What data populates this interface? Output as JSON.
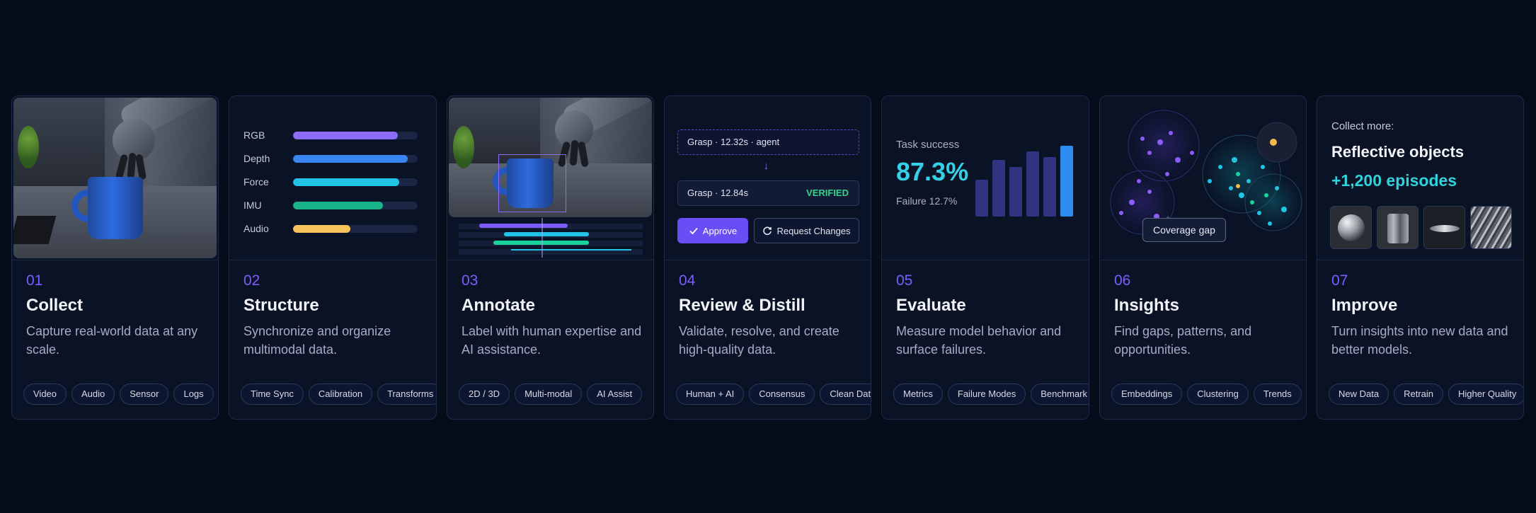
{
  "colors": {
    "background": "#060d1a",
    "card": "#0a1226",
    "accent_purple": "#7c5cff",
    "accent_cyan": "#35d0e6",
    "verified_green": "#34d48a"
  },
  "cards": [
    {
      "num": "01",
      "title": "Collect",
      "desc": "Capture real-world data at any scale.",
      "tags": [
        "Video",
        "Audio",
        "Sensor",
        "Logs"
      ]
    },
    {
      "num": "02",
      "title": "Structure",
      "desc": "Synchronize and organize multimodal data.",
      "tags": [
        "Time Sync",
        "Calibration",
        "Transforms"
      ]
    },
    {
      "num": "03",
      "title": "Annotate",
      "desc": "Label with human expertise and AI assistance.",
      "tags": [
        "2D / 3D",
        "Multi-modal",
        "AI Assist"
      ]
    },
    {
      "num": "04",
      "title": "Review & Distill",
      "desc": "Validate, resolve, and create high-quality data.",
      "tags": [
        "Human + AI",
        "Consensus",
        "Clean Data"
      ]
    },
    {
      "num": "05",
      "title": "Evaluate",
      "desc": "Measure model behavior and surface failures.",
      "tags": [
        "Metrics",
        "Failure Modes",
        "Benchmark"
      ]
    },
    {
      "num": "06",
      "title": "Insights",
      "desc": "Find gaps, patterns, and opportunities.",
      "tags": [
        "Embeddings",
        "Clustering",
        "Trends"
      ]
    },
    {
      "num": "07",
      "title": "Improve",
      "desc": "Turn insights into new data and better models.",
      "tags": [
        "New Data",
        "Retrain",
        "Higher Quality"
      ]
    }
  ],
  "structure": {
    "streams": [
      {
        "label": "RGB",
        "fill": 0.84,
        "color": "#8b6cf6"
      },
      {
        "label": "Depth",
        "fill": 0.92,
        "color": "#3a86f0"
      },
      {
        "label": "Force",
        "fill": 0.85,
        "color": "#22c4e6"
      },
      {
        "label": "IMU",
        "fill": 0.72,
        "color": "#19b38a"
      },
      {
        "label": "Audio",
        "fill": 0.46,
        "color": "#f5c35a"
      }
    ]
  },
  "review": {
    "proposal": "Grasp · 12.32s · agent",
    "arrow": "↓",
    "result": "Grasp · 12.84s",
    "status": "VERIFIED",
    "approve_label": "Approve",
    "changes_label": "Request Changes"
  },
  "evaluate": {
    "label": "Task success",
    "value": "87.3%",
    "failure": "Failure 12.7%",
    "bars": [
      0.52,
      0.8,
      0.7,
      0.92,
      0.84,
      1.0
    ]
  },
  "insights": {
    "callout": "Coverage gap"
  },
  "improve": {
    "label": "Collect more:",
    "title": "Reflective objects",
    "episodes": "+1,200 episodes",
    "thumbnails": [
      "metal-sphere",
      "glass-cylinder",
      "glass-dish",
      "metal-sheet"
    ]
  }
}
